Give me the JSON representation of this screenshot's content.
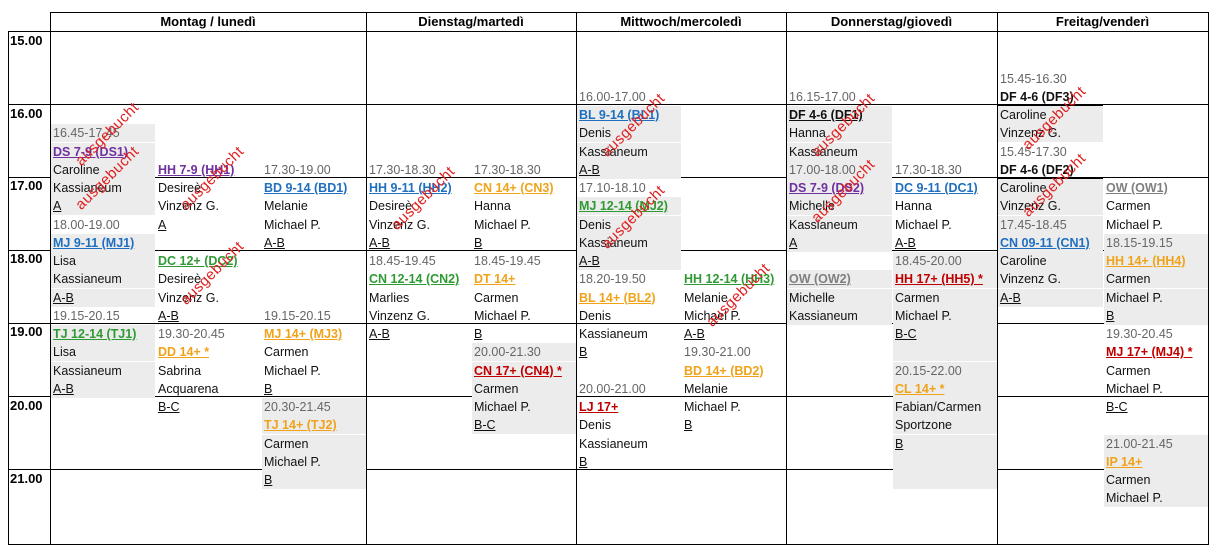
{
  "days": [
    "Montag / lunedì",
    "Dienstag/martedì",
    "Mittwoch/mercoledì",
    "Donnerstag/giovedì",
    "Freitag/venderì"
  ],
  "times": [
    "15.00",
    "16.00",
    "17.00",
    "18.00",
    "19.00",
    "20.00",
    "21.00"
  ],
  "stamp_text": "ausgebucht",
  "colors": {
    "blue": "#1f6fc0",
    "orange": "#f0a31a",
    "green": "#2f9a34",
    "purple": "#7030a0",
    "red": "#c00000",
    "gray": "#7f7f7f",
    "stamp": "#e02020"
  },
  "cells": [
    {
      "c": 0,
      "r": 3,
      "t": "16.45-17.45",
      "s": "bg muted"
    },
    {
      "c": 0,
      "r": 4,
      "t": "DS 7-9 (DS1)",
      "s": "bg purple u"
    },
    {
      "c": 0,
      "r": 5,
      "t": "Caroline",
      "s": "bg"
    },
    {
      "c": 0,
      "r": 6,
      "t": "Kassianeum",
      "s": "bg"
    },
    {
      "c": 0,
      "r": 7,
      "t": "A",
      "s": "bg u"
    },
    {
      "c": 0,
      "r": 8,
      "t": "18.00-19.00",
      "s": "muted"
    },
    {
      "c": 0,
      "r": 9,
      "t": "MJ 9-11 (MJ1)",
      "s": "bg blue u"
    },
    {
      "c": 0,
      "r": 10,
      "t": "Lisa",
      "s": "bg"
    },
    {
      "c": 0,
      "r": 11,
      "t": "Kassianeum",
      "s": "bg"
    },
    {
      "c": 0,
      "r": 12,
      "t": "A-B",
      "s": "bg u"
    },
    {
      "c": 0,
      "r": 13,
      "t": "19.15-20.15",
      "s": "muted"
    },
    {
      "c": 0,
      "r": 14,
      "t": "TJ 12-14 (TJ1)",
      "s": "bg green u"
    },
    {
      "c": 0,
      "r": 15,
      "t": "Lisa",
      "s": "bg"
    },
    {
      "c": 0,
      "r": 16,
      "t": "Kassianeum",
      "s": "bg"
    },
    {
      "c": 0,
      "r": 17,
      "t": "A-B",
      "s": "bg u"
    },
    {
      "c": 1,
      "r": 5,
      "t": "HH 7-9 (HH1)",
      "s": "purple u"
    },
    {
      "c": 1,
      "r": 6,
      "t": "Desireè",
      "s": ""
    },
    {
      "c": 1,
      "r": 7,
      "t": "Vinzenz G.",
      "s": ""
    },
    {
      "c": 1,
      "r": 8,
      "t": "A",
      "s": "u"
    },
    {
      "c": 1,
      "r": 10,
      "t": "DC 12+ (DC2)",
      "s": "green u"
    },
    {
      "c": 1,
      "r": 11,
      "t": "Desireè",
      "s": ""
    },
    {
      "c": 1,
      "r": 12,
      "t": "Vinzenz G.",
      "s": ""
    },
    {
      "c": 1,
      "r": 13,
      "t": "A-B",
      "s": "u"
    },
    {
      "c": 1,
      "r": 14,
      "t": "19.30-20.45",
      "s": "muted"
    },
    {
      "c": 1,
      "r": 15,
      "t": "DD 14+ *",
      "s": "orange u"
    },
    {
      "c": 1,
      "r": 16,
      "t": "Sabrina",
      "s": ""
    },
    {
      "c": 1,
      "r": 17,
      "t": "Acquarena",
      "s": ""
    },
    {
      "c": 1,
      "r": 18,
      "t": "B-C",
      "s": "u"
    },
    {
      "c": 2,
      "r": 5,
      "t": "17.30-19.00",
      "s": "muted"
    },
    {
      "c": 2,
      "r": 6,
      "t": "BD 9-14 (BD1)",
      "s": "blue u"
    },
    {
      "c": 2,
      "r": 7,
      "t": "Melanie",
      "s": ""
    },
    {
      "c": 2,
      "r": 8,
      "t": "Michael P.",
      "s": ""
    },
    {
      "c": 2,
      "r": 9,
      "t": "A-B",
      "s": "u"
    },
    {
      "c": 2,
      "r": 13,
      "t": "19.15-20.15",
      "s": "muted"
    },
    {
      "c": 2,
      "r": 14,
      "t": "MJ 14+ (MJ3)",
      "s": "orange u"
    },
    {
      "c": 2,
      "r": 15,
      "t": "Carmen",
      "s": ""
    },
    {
      "c": 2,
      "r": 16,
      "t": "Michael P.",
      "s": ""
    },
    {
      "c": 2,
      "r": 17,
      "t": "B",
      "s": "u"
    },
    {
      "c": 2,
      "r": 18,
      "t": "20.30-21.45",
      "s": "bg muted"
    },
    {
      "c": 2,
      "r": 19,
      "t": "TJ 14+ (TJ2)",
      "s": "bg orange u"
    },
    {
      "c": 2,
      "r": 20,
      "t": "Carmen",
      "s": "bg"
    },
    {
      "c": 2,
      "r": 21,
      "t": "Michael P.",
      "s": "bg"
    },
    {
      "c": 2,
      "r": 22,
      "t": "B",
      "s": "bg u"
    },
    {
      "c": 3,
      "r": 5,
      "t": "17.30-18.30",
      "s": "muted"
    },
    {
      "c": 3,
      "r": 6,
      "t": "HH 9-11 (HH2)",
      "s": "blue u"
    },
    {
      "c": 3,
      "r": 7,
      "t": "Desireè",
      "s": ""
    },
    {
      "c": 3,
      "r": 8,
      "t": "Vinzenz G.",
      "s": ""
    },
    {
      "c": 3,
      "r": 9,
      "t": "A-B",
      "s": "u"
    },
    {
      "c": 3,
      "r": 10,
      "t": "18.45-19.45",
      "s": "muted"
    },
    {
      "c": 3,
      "r": 11,
      "t": "CN 12-14 (CN2)",
      "s": "green u"
    },
    {
      "c": 3,
      "r": 12,
      "t": "Marlies",
      "s": ""
    },
    {
      "c": 3,
      "r": 13,
      "t": "Vinzenz G.",
      "s": ""
    },
    {
      "c": 3,
      "r": 14,
      "t": "A-B",
      "s": "u"
    },
    {
      "c": 4,
      "r": 5,
      "t": "17.30-18.30",
      "s": "muted"
    },
    {
      "c": 4,
      "r": 6,
      "t": "CN 14+ (CN3)",
      "s": "orange u"
    },
    {
      "c": 4,
      "r": 7,
      "t": "Hanna",
      "s": ""
    },
    {
      "c": 4,
      "r": 8,
      "t": "Michael P.",
      "s": ""
    },
    {
      "c": 4,
      "r": 9,
      "t": "B",
      "s": "u"
    },
    {
      "c": 4,
      "r": 10,
      "t": "18.45-19.45",
      "s": "muted"
    },
    {
      "c": 4,
      "r": 11,
      "t": "DT 14+",
      "s": "orange u"
    },
    {
      "c": 4,
      "r": 12,
      "t": "Carmen",
      "s": ""
    },
    {
      "c": 4,
      "r": 13,
      "t": "Michael P.",
      "s": ""
    },
    {
      "c": 4,
      "r": 14,
      "t": "B",
      "s": "u"
    },
    {
      "c": 4,
      "r": 15,
      "t": "20.00-21.30",
      "s": "bg muted"
    },
    {
      "c": 4,
      "r": 16,
      "t": "CN 17+ (CN4) *",
      "s": "bg red u"
    },
    {
      "c": 4,
      "r": 17,
      "t": "Carmen",
      "s": "bg"
    },
    {
      "c": 4,
      "r": 18,
      "t": "Michael P.",
      "s": "bg"
    },
    {
      "c": 4,
      "r": 19,
      "t": "B-C",
      "s": "bg u"
    },
    {
      "c": 5,
      "r": 1,
      "t": "16.00-17.00",
      "s": "muted"
    },
    {
      "c": 5,
      "r": 2,
      "t": "BL 9-14 (BL1)",
      "s": "bg blue u"
    },
    {
      "c": 5,
      "r": 3,
      "t": "Denis",
      "s": "bg"
    },
    {
      "c": 5,
      "r": 4,
      "t": "Kassianeum",
      "s": "bg"
    },
    {
      "c": 5,
      "r": 5,
      "t": "A-B",
      "s": "bg u"
    },
    {
      "c": 5,
      "r": 6,
      "t": "17.10-18.10",
      "s": "muted"
    },
    {
      "c": 5,
      "r": 7,
      "t": "MJ 12-14 (MJ2)",
      "s": "bg green u"
    },
    {
      "c": 5,
      "r": 8,
      "t": "Denis",
      "s": "bg"
    },
    {
      "c": 5,
      "r": 9,
      "t": "Kassianeum",
      "s": "bg"
    },
    {
      "c": 5,
      "r": 10,
      "t": "A-B",
      "s": "bg u"
    },
    {
      "c": 5,
      "r": 11,
      "t": "18.20-19.50",
      "s": "muted"
    },
    {
      "c": 5,
      "r": 12,
      "t": "BL 14+ (BL2)",
      "s": "orange u"
    },
    {
      "c": 5,
      "r": 13,
      "t": "Denis",
      "s": ""
    },
    {
      "c": 5,
      "r": 14,
      "t": "Kassianeum",
      "s": ""
    },
    {
      "c": 5,
      "r": 15,
      "t": "B",
      "s": "u"
    },
    {
      "c": 5,
      "r": 17,
      "t": "20.00-21.00",
      "s": "muted"
    },
    {
      "c": 5,
      "r": 18,
      "t": "LJ 17+",
      "s": "red u"
    },
    {
      "c": 5,
      "r": 19,
      "t": "Denis",
      "s": ""
    },
    {
      "c": 5,
      "r": 20,
      "t": "Kassianeum",
      "s": ""
    },
    {
      "c": 5,
      "r": 21,
      "t": "B",
      "s": "u"
    },
    {
      "c": 6,
      "r": 11,
      "t": "HH 12-14 (HH3)",
      "s": "green u"
    },
    {
      "c": 6,
      "r": 12,
      "t": "Melanie",
      "s": ""
    },
    {
      "c": 6,
      "r": 13,
      "t": "Michael P.",
      "s": ""
    },
    {
      "c": 6,
      "r": 14,
      "t": "A-B",
      "s": "u"
    },
    {
      "c": 6,
      "r": 15,
      "t": "19.30-21.00",
      "s": "muted"
    },
    {
      "c": 6,
      "r": 16,
      "t": "BD 14+ (BD2)",
      "s": "orange u"
    },
    {
      "c": 6,
      "r": 17,
      "t": "Melanie",
      "s": ""
    },
    {
      "c": 6,
      "r": 18,
      "t": "Michael P.",
      "s": ""
    },
    {
      "c": 6,
      "r": 19,
      "t": "B",
      "s": "u"
    },
    {
      "c": 7,
      "r": 1,
      "t": "16.15-17.00",
      "s": "muted"
    },
    {
      "c": 7,
      "r": 2,
      "t": "DF 4-6 (DF1)",
      "s": "bg b u"
    },
    {
      "c": 7,
      "r": 3,
      "t": "Hanna",
      "s": "bg"
    },
    {
      "c": 7,
      "r": 4,
      "t": "Kassianeum",
      "s": "bg"
    },
    {
      "c": 7,
      "r": 5,
      "t": "17.00-18.00",
      "s": "bg muted"
    },
    {
      "c": 7,
      "r": 6,
      "t": "DS 7-9 (DS2)",
      "s": "bg purple u"
    },
    {
      "c": 7,
      "r": 7,
      "t": "Michelle",
      "s": "bg"
    },
    {
      "c": 7,
      "r": 8,
      "t": "Kassianeum",
      "s": "bg"
    },
    {
      "c": 7,
      "r": 9,
      "t": "A",
      "s": "bg u"
    },
    {
      "c": 7,
      "r": 11,
      "t": "OW (OW2)",
      "s": "bg gray u"
    },
    {
      "c": 7,
      "r": 12,
      "t": "Michelle",
      "s": "bg"
    },
    {
      "c": 7,
      "r": 13,
      "t": "Kassianeum",
      "s": "bg"
    },
    {
      "c": 8,
      "r": 5,
      "t": "17.30-18.30",
      "s": "muted"
    },
    {
      "c": 8,
      "r": 6,
      "t": "DC 9-11 (DC1)",
      "s": "blue u"
    },
    {
      "c": 8,
      "r": 7,
      "t": "Hanna",
      "s": ""
    },
    {
      "c": 8,
      "r": 8,
      "t": "Michael P.",
      "s": ""
    },
    {
      "c": 8,
      "r": 9,
      "t": "A-B",
      "s": "u"
    },
    {
      "c": 8,
      "r": 10,
      "t": "18.45-20.00",
      "s": "bg muted"
    },
    {
      "c": 8,
      "r": 11,
      "t": "HH 17+ (HH5) *",
      "s": "bg red u"
    },
    {
      "c": 8,
      "r": 12,
      "t": "Carmen",
      "s": "bg"
    },
    {
      "c": 8,
      "r": 13,
      "t": "Michael P.",
      "s": "bg"
    },
    {
      "c": 8,
      "r": 14,
      "t": "B-C",
      "s": "bg u"
    },
    {
      "c": 8,
      "r": 15,
      "t": "",
      "s": "bg"
    },
    {
      "c": 8,
      "r": 16,
      "t": "20.15-22.00",
      "s": "bg muted"
    },
    {
      "c": 8,
      "r": 17,
      "t": "CL 14+ *",
      "s": "bg orange u"
    },
    {
      "c": 8,
      "r": 18,
      "t": "Fabian/Carmen",
      "s": "bg"
    },
    {
      "c": 8,
      "r": 19,
      "t": "Sportzone",
      "s": "bg"
    },
    {
      "c": 8,
      "r": 20,
      "t": "B",
      "s": "bg u"
    },
    {
      "c": 8,
      "r": 21,
      "t": "",
      "s": "bg"
    },
    {
      "c": 8,
      "r": 22,
      "t": "",
      "s": "bg"
    },
    {
      "c": 9,
      "r": 0,
      "t": "15.45-16.30",
      "s": "muted"
    },
    {
      "c": 9,
      "r": 1,
      "t": "DF 4-6 (DF3)",
      "s": "b und"
    },
    {
      "c": 9,
      "r": 2,
      "t": "Caroline",
      "s": "bg"
    },
    {
      "c": 9,
      "r": 3,
      "t": "Vinzenz G.",
      "s": "bg"
    },
    {
      "c": 9,
      "r": 4,
      "t": "15.45-17.30",
      "s": "muted"
    },
    {
      "c": 9,
      "r": 5,
      "t": "DF 4-6 (DF2)",
      "s": "b und"
    },
    {
      "c": 9,
      "r": 6,
      "t": "Caroline",
      "s": "bg"
    },
    {
      "c": 9,
      "r": 7,
      "t": "Vinzenz G.",
      "s": "bg"
    },
    {
      "c": 9,
      "r": 8,
      "t": "17.45-18.45",
      "s": "bg muted"
    },
    {
      "c": 9,
      "r": 9,
      "t": "CN 09-11 (CN1)",
      "s": "bg blue u"
    },
    {
      "c": 9,
      "r": 10,
      "t": "Caroline",
      "s": "bg"
    },
    {
      "c": 9,
      "r": 11,
      "t": "Vinzenz G.",
      "s": "bg"
    },
    {
      "c": 9,
      "r": 12,
      "t": "A-B",
      "s": "bg u"
    },
    {
      "c": 10,
      "r": 6,
      "t": "OW (OW1)",
      "s": "gray u"
    },
    {
      "c": 10,
      "r": 7,
      "t": "Carmen",
      "s": ""
    },
    {
      "c": 10,
      "r": 8,
      "t": "Michael P.",
      "s": ""
    },
    {
      "c": 10,
      "r": 9,
      "t": "18.15-19.15",
      "s": "bg muted"
    },
    {
      "c": 10,
      "r": 10,
      "t": "HH 14+ (HH4)",
      "s": "bg orange u"
    },
    {
      "c": 10,
      "r": 11,
      "t": "Carmen",
      "s": "bg"
    },
    {
      "c": 10,
      "r": 12,
      "t": "Michael P.",
      "s": "bg"
    },
    {
      "c": 10,
      "r": 13,
      "t": "B",
      "s": "bg u"
    },
    {
      "c": 10,
      "r": 14,
      "t": "19.30-20.45",
      "s": "muted"
    },
    {
      "c": 10,
      "r": 15,
      "t": "MJ 17+ (MJ4) *",
      "s": "red u"
    },
    {
      "c": 10,
      "r": 16,
      "t": "Carmen",
      "s": ""
    },
    {
      "c": 10,
      "r": 17,
      "t": "Michael P.",
      "s": ""
    },
    {
      "c": 10,
      "r": 18,
      "t": "B-C",
      "s": "u"
    },
    {
      "c": 10,
      "r": 20,
      "t": "21.00-21.45",
      "s": "bg muted"
    },
    {
      "c": 10,
      "r": 21,
      "t": "IP 14+",
      "s": "bg orange u"
    },
    {
      "c": 10,
      "r": 22,
      "t": "Carmen",
      "s": "bg"
    },
    {
      "c": 10,
      "r": 23,
      "t": "Michael P.",
      "s": "bg"
    }
  ],
  "stamps": [
    {
      "c": 0,
      "r": 3.5
    },
    {
      "c": 0,
      "r": 5.9
    },
    {
      "c": 1,
      "r": 5.9
    },
    {
      "c": 1,
      "r": 11.1
    },
    {
      "c": 3,
      "r": 7.0
    },
    {
      "c": 5,
      "r": 3.0
    },
    {
      "c": 5,
      "r": 8.0
    },
    {
      "c": 6,
      "r": 12.3
    },
    {
      "c": 7,
      "r": 3.0
    },
    {
      "c": 7,
      "r": 6.6
    },
    {
      "c": 9,
      "r": 2.6
    },
    {
      "c": 9,
      "r": 6.3
    }
  ]
}
